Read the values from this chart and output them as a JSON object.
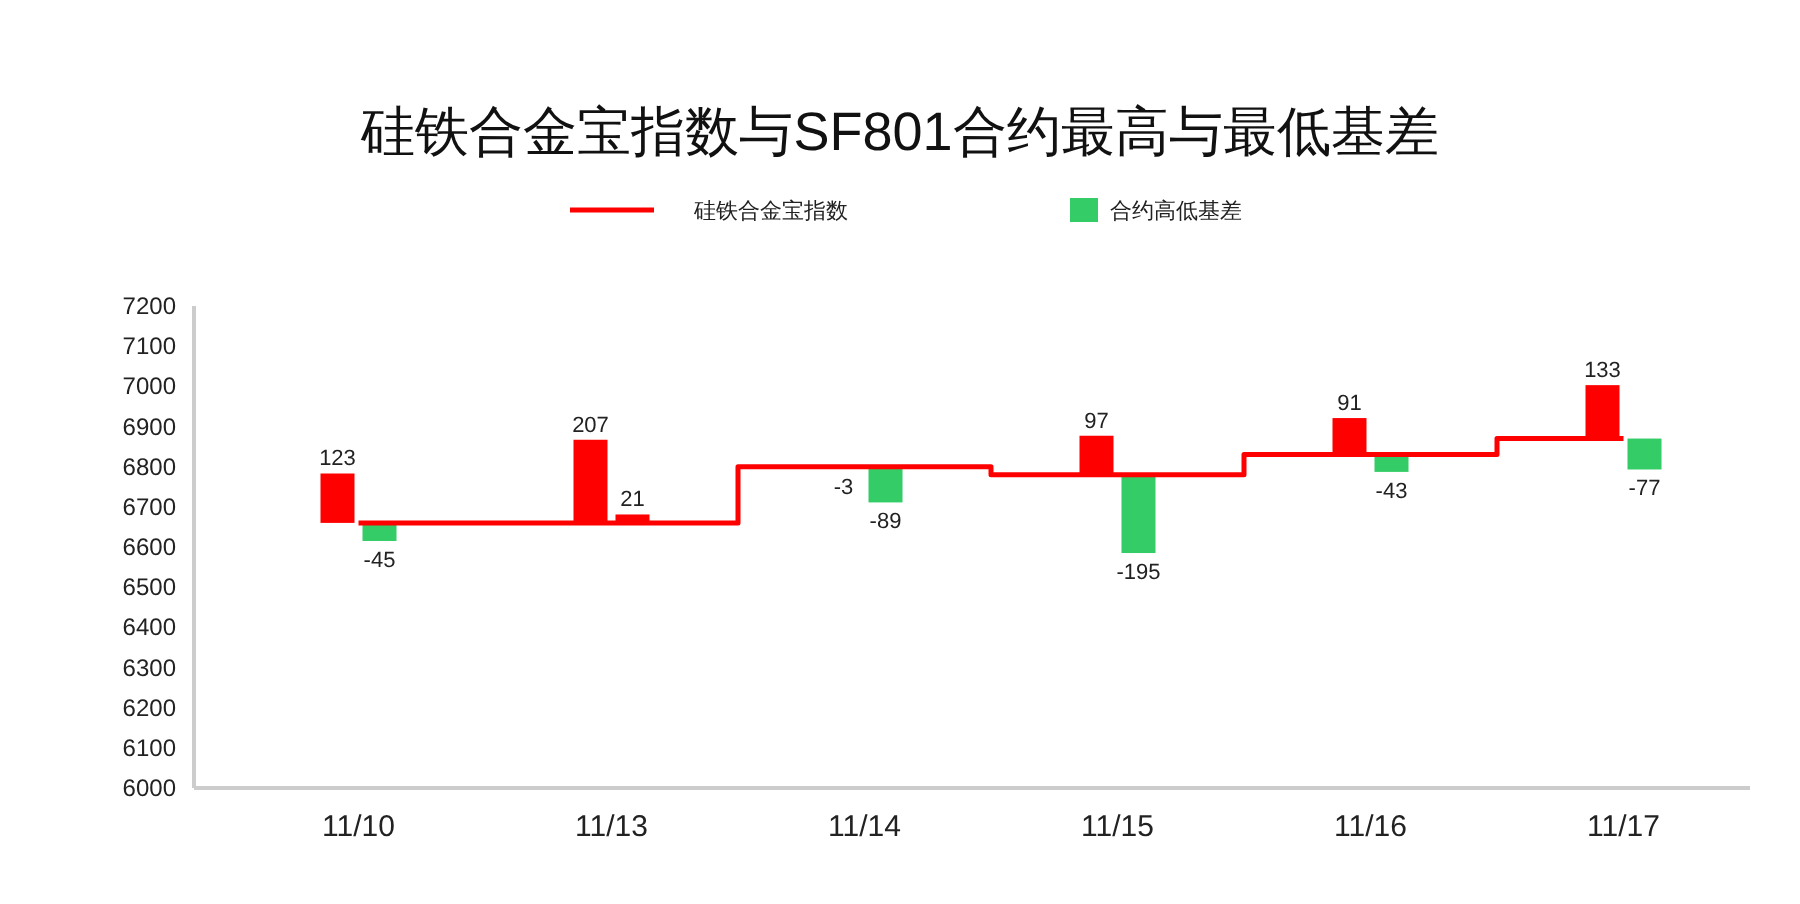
{
  "chart_data": {
    "type": "bar",
    "title": "硅铁合金宝指数与SF801合约最高与最低基差",
    "categories": [
      "11/10",
      "11/13",
      "11/14",
      "11/15",
      "11/16",
      "11/17"
    ],
    "ylim": [
      6000,
      7200
    ],
    "yticks": [
      6000,
      6100,
      6200,
      6300,
      6400,
      6500,
      6600,
      6700,
      6800,
      6900,
      7000,
      7100,
      7200
    ],
    "grid": false,
    "legend": "top",
    "series": [
      {
        "name": "硅铁合金宝指数",
        "type": "step",
        "color": "#ff0000",
        "values": [
          6660,
          6660,
          6800,
          6780,
          6830,
          6870
        ]
      },
      {
        "colors": [
          "#ff0000",
          "#ff0000",
          "#ff0000",
          "#ff0000",
          "#ff0000",
          "#ff0000"
        ],
        "base": [
          6660,
          6660,
          6800,
          6780,
          6830,
          6870
        ],
        "values": [
          123,
          207,
          -3,
          97,
          91,
          133
        ],
        "value_labels": [
          "123",
          "207",
          "-3",
          "97",
          "91",
          "133"
        ]
      },
      {
        "name": "合约高低基差",
        "color": "#33cc66",
        "colors": [
          "#33cc66",
          "#ff0000",
          "#33cc66",
          "#33cc66",
          "#33cc66",
          "#33cc66"
        ],
        "base": [
          6660,
          6660,
          6800,
          6780,
          6830,
          6870
        ],
        "values": [
          -45,
          21,
          -89,
          -195,
          -43,
          -77
        ],
        "value_labels": [
          "-45",
          "21",
          "-89",
          "-195",
          "-43",
          "-77"
        ]
      }
    ]
  }
}
